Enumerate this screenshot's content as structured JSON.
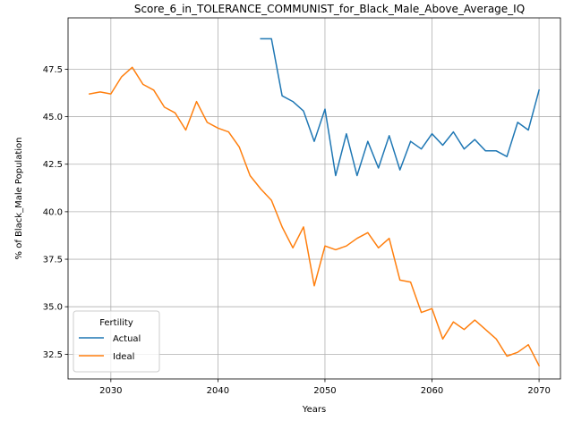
{
  "chart_data": {
    "type": "line",
    "title": "Score_6_in_TOLERANCE_COMMUNIST_for_Black_Male_Above_Average_IQ",
    "xlabel": "Years",
    "ylabel": "% of Black_Male Population",
    "xlim": [
      2026,
      2072
    ],
    "ylim": [
      31.2,
      50.2
    ],
    "xticks": [
      2030,
      2040,
      2050,
      2060,
      2070
    ],
    "yticks": [
      32.5,
      35.0,
      37.5,
      40.0,
      42.5,
      45.0,
      47.5
    ],
    "xtick_labels": [
      "2030",
      "2040",
      "2050",
      "2060",
      "2070"
    ],
    "ytick_labels": [
      "32.5",
      "35.0",
      "37.5",
      "40.0",
      "42.5",
      "45.0",
      "47.5"
    ],
    "grid": true,
    "legend": {
      "title": "Fertility",
      "placement": "lower-left"
    },
    "series": [
      {
        "name": "Actual",
        "color": "#1f77b4",
        "x": [
          2044,
          2045,
          2046,
          2047,
          2048,
          2049,
          2050,
          2051,
          2052,
          2053,
          2054,
          2055,
          2056,
          2057,
          2058,
          2059,
          2060,
          2061,
          2062,
          2063,
          2064,
          2065,
          2066,
          2067,
          2068,
          2069,
          2070
        ],
        "y": [
          49.1,
          49.1,
          46.1,
          45.8,
          45.3,
          43.7,
          45.4,
          41.9,
          44.1,
          41.9,
          43.7,
          42.3,
          44.0,
          42.2,
          43.7,
          43.3,
          44.1,
          43.5,
          44.2,
          43.3,
          43.8,
          43.2,
          43.2,
          42.9,
          44.7,
          44.3,
          46.4
        ]
      },
      {
        "name": "Ideal",
        "color": "#ff7f0e",
        "x": [
          2028,
          2029,
          2030,
          2031,
          2032,
          2033,
          2034,
          2035,
          2036,
          2037,
          2038,
          2039,
          2040,
          2041,
          2042,
          2043,
          2044,
          2045,
          2046,
          2047,
          2048,
          2049,
          2050,
          2051,
          2052,
          2053,
          2054,
          2055,
          2056,
          2057,
          2058,
          2059,
          2060,
          2061,
          2062,
          2063,
          2064,
          2065,
          2066,
          2067,
          2068,
          2069,
          2070
        ],
        "y": [
          46.2,
          46.3,
          46.2,
          47.1,
          47.6,
          46.7,
          46.4,
          45.5,
          45.2,
          44.3,
          45.8,
          44.7,
          44.4,
          44.2,
          43.4,
          41.9,
          41.2,
          40.6,
          39.2,
          38.1,
          39.2,
          36.1,
          38.2,
          38.0,
          38.2,
          38.6,
          38.9,
          38.1,
          38.6,
          36.4,
          36.3,
          34.7,
          34.9,
          33.3,
          34.2,
          33.8,
          34.3,
          33.8,
          33.3,
          32.4,
          32.6,
          33.0,
          31.9
        ]
      }
    ]
  }
}
